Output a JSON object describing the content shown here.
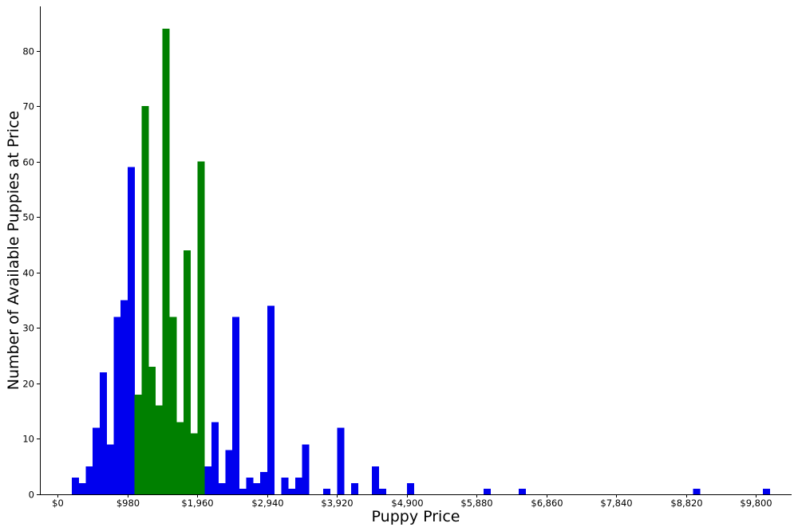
{
  "chart_data": {
    "type": "bar",
    "title": "",
    "xlabel": "Puppy Price",
    "ylabel": "Number of Available Puppies at Price",
    "xlim": [
      -250,
      10300
    ],
    "ylim": [
      0,
      88
    ],
    "bin_width": 98,
    "grid": false,
    "x_ticks": [
      0,
      980,
      1960,
      2940,
      3920,
      4900,
      5880,
      6860,
      7840,
      8820,
      9800
    ],
    "x_tick_labels": [
      "$0",
      "$980",
      "$1,960",
      "$2,940",
      "$3,920",
      "$4,900",
      "$5,880",
      "$6,860",
      "$7,840",
      "$8,820",
      "$9,800"
    ],
    "y_ticks": [
      0,
      10,
      20,
      30,
      40,
      50,
      60,
      70,
      80
    ],
    "y_tick_labels": [
      "0",
      "10",
      "20",
      "30",
      "40",
      "50",
      "60",
      "70",
      "80"
    ],
    "colors": {
      "outside": "#0000ee",
      "inside": "#008000"
    },
    "series": [
      {
        "color": "#0000ee",
        "bins": [
          {
            "x": 196,
            "value": 3
          },
          {
            "x": 294,
            "value": 2
          },
          {
            "x": 392,
            "value": 5
          },
          {
            "x": 490,
            "value": 12
          },
          {
            "x": 588,
            "value": 22
          },
          {
            "x": 686,
            "value": 9
          },
          {
            "x": 784,
            "value": 32
          },
          {
            "x": 882,
            "value": 35
          },
          {
            "x": 980,
            "value": 59
          },
          {
            "x": 2058,
            "value": 5
          },
          {
            "x": 2156,
            "value": 13
          },
          {
            "x": 2254,
            "value": 2
          },
          {
            "x": 2352,
            "value": 8
          },
          {
            "x": 2450,
            "value": 32
          },
          {
            "x": 2548,
            "value": 1
          },
          {
            "x": 2646,
            "value": 3
          },
          {
            "x": 2744,
            "value": 2
          },
          {
            "x": 2842,
            "value": 4
          },
          {
            "x": 2940,
            "value": 34
          },
          {
            "x": 3136,
            "value": 3
          },
          {
            "x": 3234,
            "value": 1
          },
          {
            "x": 3332,
            "value": 3
          },
          {
            "x": 3430,
            "value": 9
          },
          {
            "x": 3724,
            "value": 1
          },
          {
            "x": 3920,
            "value": 12
          },
          {
            "x": 4116,
            "value": 2
          },
          {
            "x": 4410,
            "value": 5
          },
          {
            "x": 4508,
            "value": 1
          },
          {
            "x": 4900,
            "value": 2
          },
          {
            "x": 5978,
            "value": 1
          },
          {
            "x": 6468,
            "value": 1
          },
          {
            "x": 8918,
            "value": 1
          },
          {
            "x": 9898,
            "value": 1
          }
        ]
      },
      {
        "color": "#008000",
        "bins": [
          {
            "x": 1078,
            "value": 18
          },
          {
            "x": 1176,
            "value": 70
          },
          {
            "x": 1274,
            "value": 23
          },
          {
            "x": 1372,
            "value": 16
          },
          {
            "x": 1470,
            "value": 84
          },
          {
            "x": 1568,
            "value": 32
          },
          {
            "x": 1666,
            "value": 13
          },
          {
            "x": 1764,
            "value": 44
          },
          {
            "x": 1862,
            "value": 11
          },
          {
            "x": 1960,
            "value": 60
          }
        ]
      }
    ]
  }
}
